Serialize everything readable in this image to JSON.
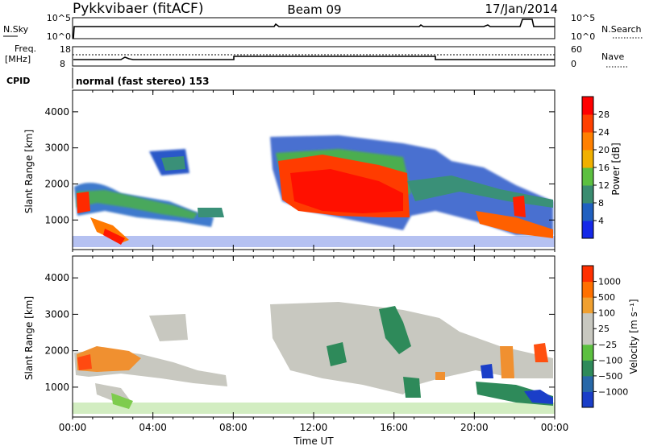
{
  "header": {
    "station": "Pykkvibaer (fitACF)",
    "beam": "Beam 09",
    "date": "17/Jan/2014"
  },
  "top_panels": {
    "nsky_label": "N.Sky",
    "nsky_ticks": [
      "10^5",
      "10^0"
    ],
    "nsearch_label": "N.Search",
    "nsearch_ticks": [
      "10^5",
      "10^0"
    ],
    "freq_label_1": "Freq.",
    "freq_label_2": "[MHz]",
    "freq_ticks": [
      "18",
      "8"
    ],
    "nave_label": "Nave",
    "nave_ticks": [
      "60",
      "0"
    ],
    "cpid_label": "CPID",
    "cpid_text": "normal (fast stereo) 153"
  },
  "chart_data": [
    {
      "type": "heatmap",
      "title": "",
      "ylabel": "Slant Range [km]",
      "ylim": [
        180,
        4600
      ],
      "yticks": [
        "1000",
        "2000",
        "3000",
        "4000"
      ],
      "colorbar_label": "Power [dB]",
      "colorbar_ticks": [
        "4",
        "8",
        "12",
        "16",
        "20",
        "24",
        "28"
      ],
      "colorbar_colors": [
        "#1428e8",
        "#2060c0",
        "#3a8c70",
        "#5cc040",
        "#f0b000",
        "#ff8000",
        "#ff4000",
        "#ff0000"
      ]
    },
    {
      "type": "heatmap",
      "title": "",
      "ylabel": "Slant Range [km]",
      "ylim": [
        180,
        4600
      ],
      "yticks": [
        "1000",
        "2000",
        "3000",
        "4000"
      ],
      "colorbar_label": "Velocity [m s⁻¹]",
      "colorbar_ticks": [
        "1000",
        "500",
        "100",
        "25",
        "−25",
        "−100",
        "−500",
        "−1000"
      ],
      "colorbar_colors": [
        "#1a3ec8",
        "#2868a8",
        "#2e8a5a",
        "#5cc040",
        "#c8c8c0",
        "#c8c8c0",
        "#f0a030",
        "#ff7000",
        "#ff3000"
      ]
    }
  ],
  "xaxis": {
    "label": "Time UT",
    "ticks": [
      "00:00",
      "04:00",
      "08:00",
      "12:00",
      "16:00",
      "20:00",
      "00:00"
    ]
  }
}
